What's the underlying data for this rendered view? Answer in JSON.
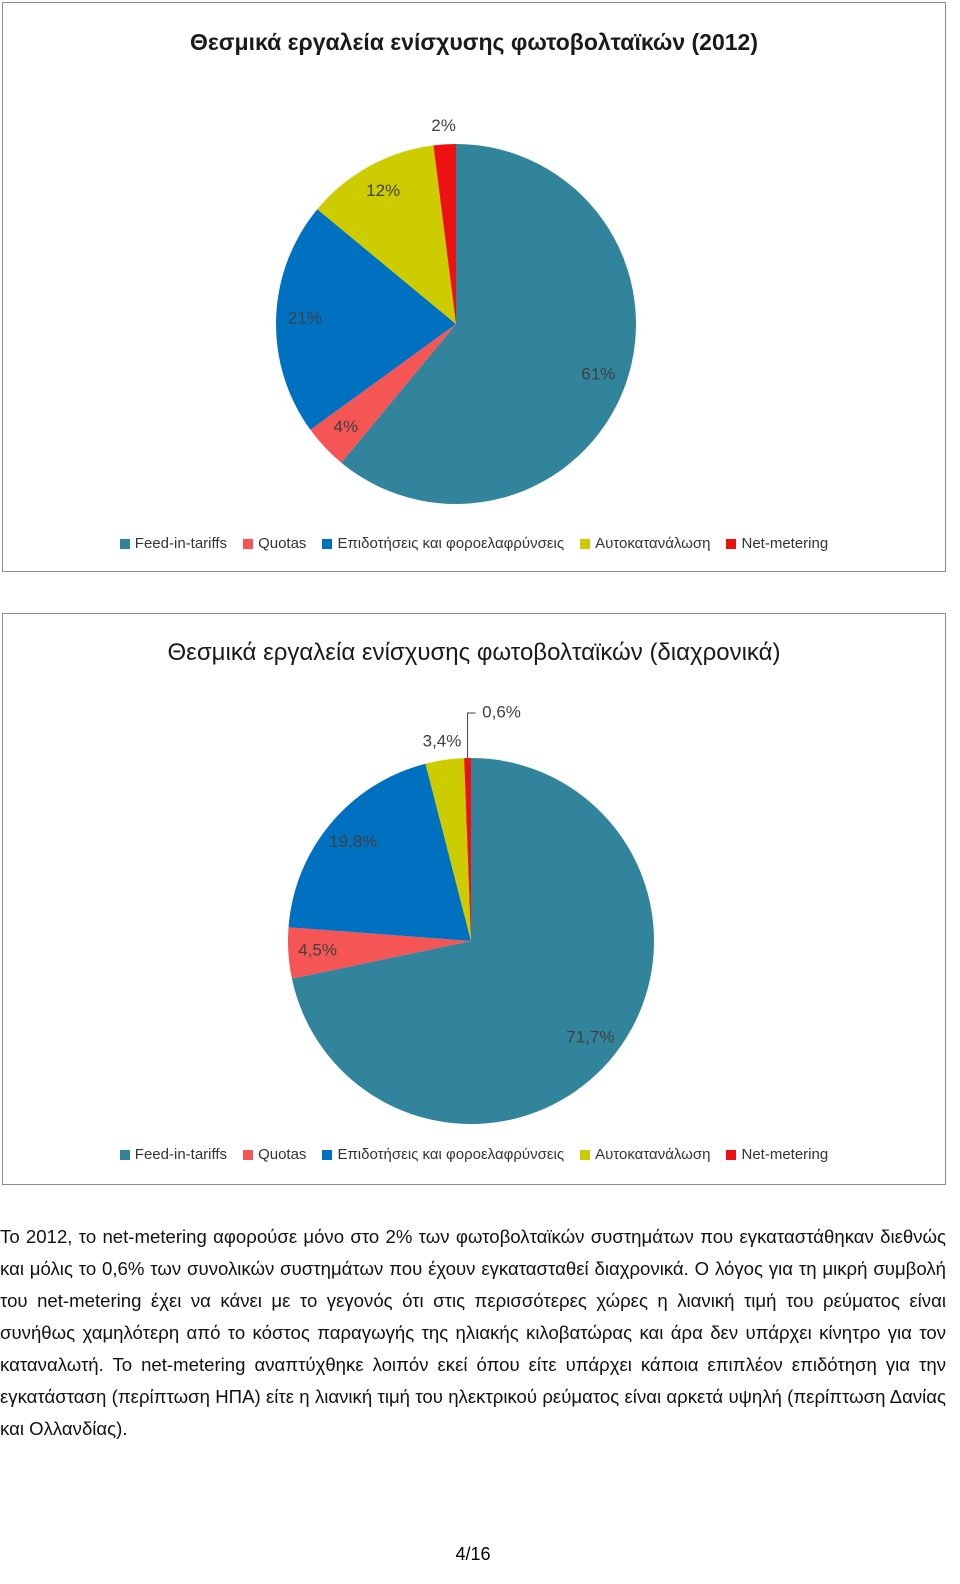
{
  "chart_data": [
    {
      "type": "pie",
      "title": "Θεσμικά εργαλεία ενίσχυσης φωτοβολταϊκών (2012)",
      "categories": [
        "Feed-in-tariffs",
        "Quotas",
        "Επιδοτήσεις και φοροελαφρύνσεις",
        "Αυτοκατανάλωση",
        "Net-metering"
      ],
      "values": [
        61,
        4,
        21,
        12,
        2
      ],
      "value_labels": [
        "61%",
        "4%",
        "21%",
        "12%",
        "2%"
      ],
      "colors": [
        "#31849b",
        "#f55555",
        "#0070c0",
        "#cccc00",
        "#ee1111"
      ]
    },
    {
      "type": "pie",
      "title": "Θεσμικά εργαλεία ενίσχυσης φωτοβολταϊκών (διαχρονικά)",
      "categories": [
        "Feed-in-tariffs",
        "Quotas",
        "Επιδοτήσεις και φοροελαφρύνσεις",
        "Αυτοκατανάλωση",
        "Net-metering"
      ],
      "values": [
        71.7,
        4.5,
        19.8,
        3.4,
        0.6
      ],
      "value_labels": [
        "71,7%",
        "4,5%",
        "19,8%",
        "3,4%",
        "0,6%"
      ],
      "colors": [
        "#31849b",
        "#f55555",
        "#0070c0",
        "#cccc00",
        "#ee1111"
      ]
    }
  ],
  "paragraph": "Το 2012, το net-metering αφορούσε μόνο στο 2% των φωτοβολταϊκών συστημάτων που εγκαταστάθηκαν διεθνώς και μόλις το 0,6% των συνολικών συστημάτων που έχουν εγκατασταθεί διαχρονικά. Ο λόγος για τη μικρή συμβολή του net-metering έχει να κάνει με το γεγονός ότι στις περισσότερες χώρες η λιανική τιμή του ρεύματος είναι συνήθως χαμηλότερη από το κόστος παραγωγής της ηλιακής κιλοβατώρας και άρα δεν υπάρχει κίνητρο για τον καταναλωτή. Το net-metering αναπτύχθηκε λοιπόν εκεί όπου είτε υπάρχει κάποια επιπλέον επιδότηση για την εγκατάσταση (περίπτωση ΗΠΑ) είτε η λιανική τιμή του ηλεκτρικού ρεύματος είναι αρκετά υψηλή (περίπτωση Δανίας και Ολλανδίας).",
  "page_number": "4/16"
}
